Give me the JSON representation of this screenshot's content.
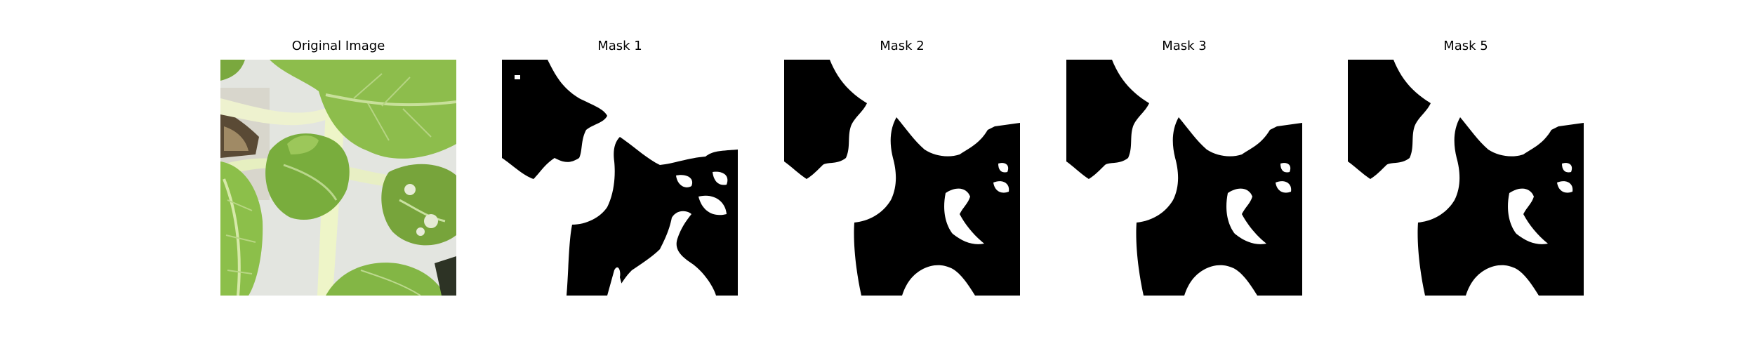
{
  "panels": [
    {
      "title": "Original Image"
    },
    {
      "title": "Mask 1"
    },
    {
      "title": "Mask 2"
    },
    {
      "title": "Mask 3"
    },
    {
      "title": "Mask 5"
    }
  ],
  "colors": {
    "mask_foreground": "#000000",
    "mask_background": "#ffffff",
    "leaf_light": "#8fc04c",
    "leaf_dark": "#5e8e2c",
    "stem": "#e8efc6",
    "background_tray": "#e6e8e3"
  }
}
